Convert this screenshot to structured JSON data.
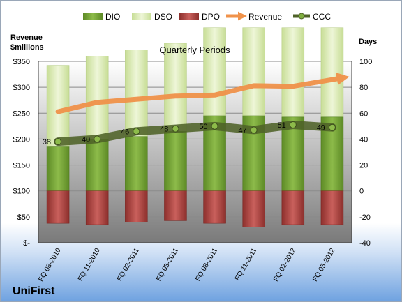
{
  "chart_data": {
    "type": "bar",
    "title": "Quarterly Periods",
    "company": "UniFirst",
    "y_left_label": [
      "Revenue",
      "$millions"
    ],
    "y_right_label": "Days",
    "y_left_ticks": [
      "$-",
      "$50",
      "$100",
      "$150",
      "$200",
      "$250",
      "$300",
      "$350"
    ],
    "y_left_lim": [
      0,
      350
    ],
    "y_right_ticks": [
      "-40",
      "-20",
      "0",
      "20",
      "40",
      "60",
      "80",
      "100"
    ],
    "y_right_lim": [
      -40,
      100
    ],
    "categories": [
      "FQ 08-2010",
      "FQ 11-2010",
      "FQ 02-2011",
      "FQ 05-2011",
      "FQ 08-2011",
      "FQ 11-2011",
      "FQ 02-2012",
      "FQ 05-2012"
    ],
    "legend": [
      "DIO",
      "DSO",
      "DPO",
      "Revenue",
      "CCC"
    ],
    "series": [
      {
        "name": "DIO",
        "axis": "right",
        "color": "#77a23a",
        "values": [
          34,
          40,
          42,
          46,
          58,
          58,
          57,
          57
        ]
      },
      {
        "name": "DSO",
        "axis": "right",
        "color": "#e3f0c3",
        "values": [
          63,
          64,
          67,
          68,
          68,
          68,
          69,
          69
        ]
      },
      {
        "name": "DPO",
        "axis": "right",
        "color": "#c0504d",
        "values": [
          -25,
          -26,
          -24,
          -23,
          -25,
          -28,
          -26,
          -26
        ]
      },
      {
        "name": "Revenue",
        "axis": "left",
        "color": "#f0924a",
        "values": [
          253,
          271,
          277,
          283,
          285,
          303,
          302,
          318
        ]
      },
      {
        "name": "CCC",
        "axis": "right",
        "color": "#4f6228",
        "values": [
          38,
          40,
          46,
          48,
          50,
          47,
          51,
          49
        ]
      }
    ],
    "ccc_labels": [
      "38",
      "40",
      "46",
      "48",
      "50",
      "47",
      "51",
      "49"
    ],
    "grid": true,
    "legend_position": "top"
  }
}
